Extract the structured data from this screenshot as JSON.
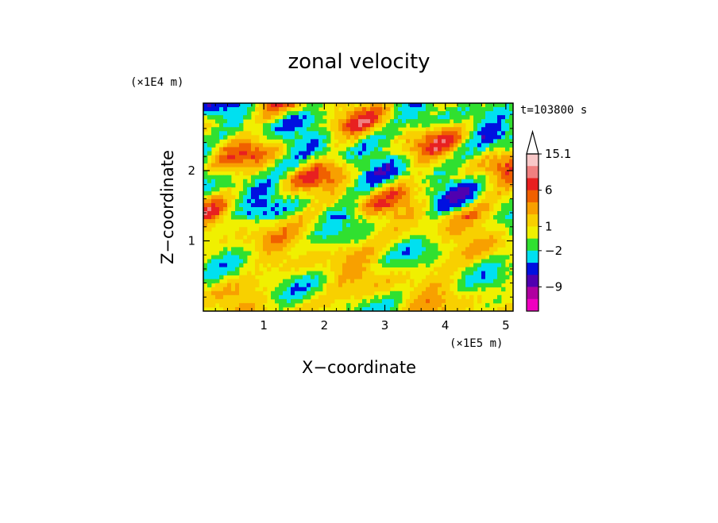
{
  "chart_data": {
    "type": "heatmap",
    "title": "zonal velocity",
    "xlabel": "X−coordinate",
    "ylabel": "Z−coordinate",
    "x_scale_label": "(×1E5 m)",
    "y_scale_label": "(×1E4 m)",
    "time_label": "t=103800 s",
    "xlim": [
      0,
      5.12
    ],
    "ylim": [
      0,
      2.96
    ],
    "x_ticks": [
      1,
      2,
      3,
      4,
      5
    ],
    "x_tick_labels": [
      "1",
      "2",
      "3",
      "4",
      "5"
    ],
    "y_ticks": [
      1,
      2
    ],
    "y_tick_labels": [
      "1",
      "2"
    ],
    "colorbar": {
      "levels_top_to_bottom": [
        "15.1",
        "",
        "",
        "6",
        "",
        "",
        "1",
        "",
        "-2",
        "",
        "",
        "-9",
        ""
      ],
      "labels": [
        {
          "text": "15.1",
          "level": 0
        },
        {
          "text": "6",
          "level": 3
        },
        {
          "text": "1",
          "level": 6
        },
        {
          "text": "−2",
          "level": 8
        },
        {
          "text": "−9",
          "level": 11
        }
      ],
      "colors_top_to_bottom": [
        "#f8c8c8",
        "#f08080",
        "#e82020",
        "#f06000",
        "#f8a000",
        "#f8d000",
        "#f0f000",
        "#30e030",
        "#00e0f0",
        "#0010e0",
        "#5000b0",
        "#b000a0",
        "#f000c0"
      ],
      "triangle_top": true
    },
    "grid": false
  }
}
